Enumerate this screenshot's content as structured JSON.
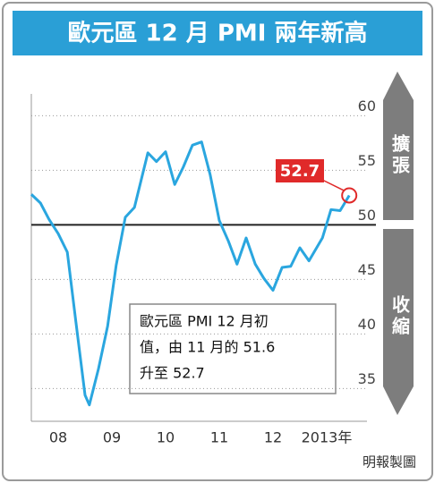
{
  "chart_data": {
    "type": "line",
    "title": "歐元區 12 月 PMI 兩年新高",
    "x": [
      2008.0,
      2008.17,
      2008.33,
      2008.5,
      2008.67,
      2008.83,
      2009.0,
      2009.08,
      2009.25,
      2009.42,
      2009.58,
      2009.75,
      2009.92,
      2010.17,
      2010.33,
      2010.5,
      2010.67,
      2010.83,
      2011.0,
      2011.17,
      2011.33,
      2011.5,
      2011.67,
      2011.83,
      2012.0,
      2012.17,
      2012.33,
      2012.5,
      2012.67,
      2012.83,
      2013.0,
      2013.17,
      2013.42,
      2013.58,
      2013.75,
      2013.92
    ],
    "series": [
      {
        "color": "#2aa6df",
        "values": [
          52.8,
          52.0,
          50.5,
          49.2,
          47.5,
          41.1,
          34.4,
          33.5,
          36.8,
          40.7,
          46.3,
          50.7,
          51.6,
          56.6,
          55.8,
          56.7,
          53.7,
          55.3,
          57.3,
          57.6,
          54.6,
          50.4,
          48.5,
          46.4,
          48.8,
          46.4,
          45.1,
          44.0,
          46.1,
          46.2,
          47.9,
          46.7,
          48.8,
          51.4,
          51.3,
          52.7
        ]
      }
    ],
    "highlight_label": "52.7",
    "xlim": [
      2008,
      2014
    ],
    "xticks": [
      {
        "value": 2008.5,
        "label": "08"
      },
      {
        "value": 2009.5,
        "label": "09"
      },
      {
        "value": 2010.5,
        "label": "10"
      },
      {
        "value": 2011.5,
        "label": "11"
      },
      {
        "value": 2012.5,
        "label": "12"
      },
      {
        "value": 2013.5,
        "label": "2013年"
      }
    ],
    "ylim": [
      32,
      62
    ],
    "yticks": [
      35,
      40,
      45,
      50,
      55,
      60
    ],
    "grid": true,
    "reference_line": 50,
    "upper_label": "擴張",
    "lower_label": "收縮",
    "note": [
      "歐元區 PMI 12 月初",
      "值，由 11 月的 51.6",
      "升至 52.7"
    ],
    "source": "明報製圖"
  }
}
